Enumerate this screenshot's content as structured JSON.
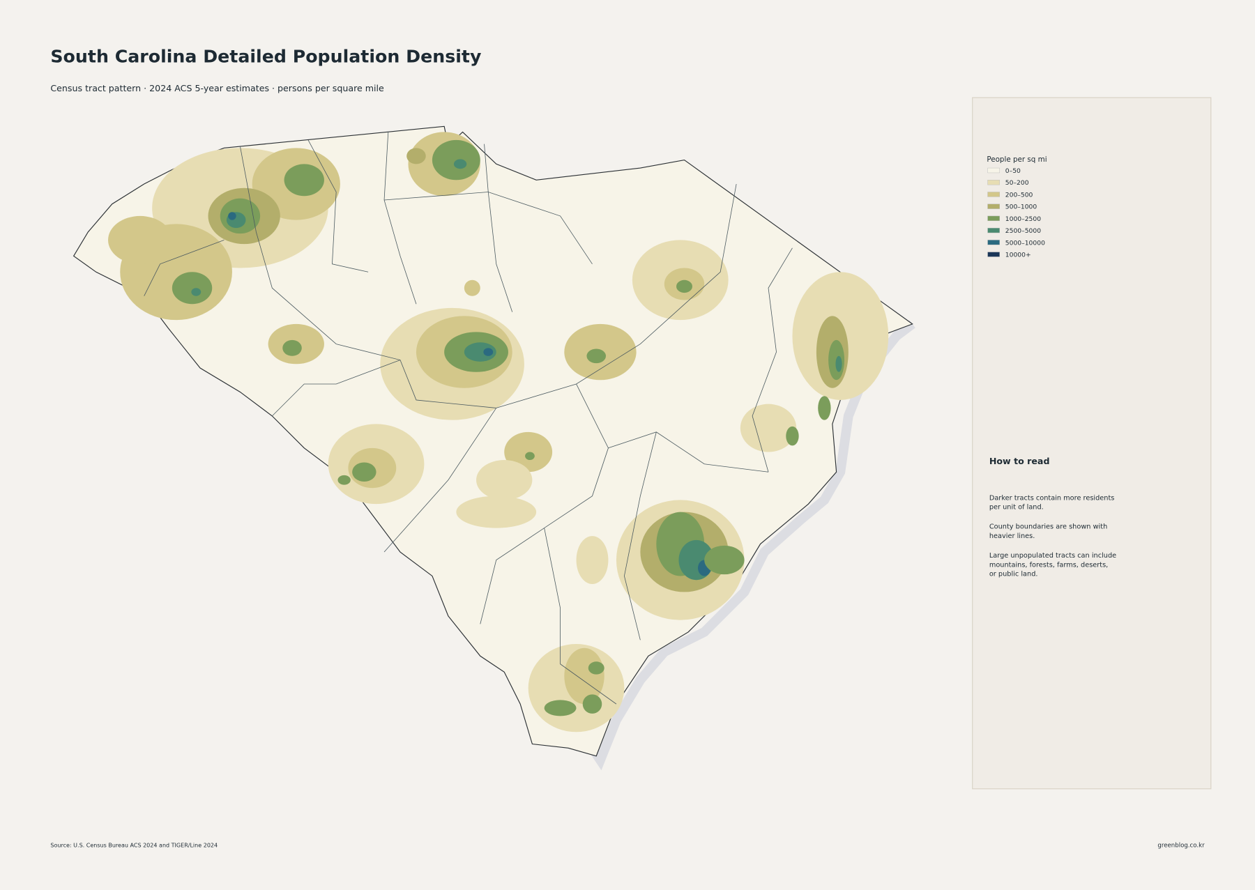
{
  "header": {
    "title": "South Carolina Detailed Population Density",
    "subtitle": "Census tract pattern · 2024 ACS 5-year estimates · persons per square mile"
  },
  "legend": {
    "title": "People per sq mi",
    "items": [
      {
        "label": "0–50",
        "color": "#f7f4e8"
      },
      {
        "label": "50–200",
        "color": "#e7ddb3"
      },
      {
        "label": "200–500",
        "color": "#d3c78a"
      },
      {
        "label": "500–1000",
        "color": "#b3ae6b"
      },
      {
        "label": "1000–2500",
        "color": "#7b9d5b"
      },
      {
        "label": "2500–5000",
        "color": "#4a8a70"
      },
      {
        "label": "5000–10000",
        "color": "#2b6a80"
      },
      {
        "label": "10000+",
        "color": "#1b3658"
      }
    ]
  },
  "notes": {
    "title": "How to read",
    "paragraphs": [
      [
        "Darker tracts contain more residents",
        "per unit of land."
      ],
      [
        "County boundaries are shown with",
        "heavier lines."
      ],
      [
        "Large unpopulated tracts can include",
        "mountains, forests, farms, deserts,",
        "or public land."
      ]
    ]
  },
  "footer": {
    "source": "Source: U.S. Census Bureau ACS 2024 and TIGER/Line 2024",
    "credit": "greenblog.co.kr"
  }
}
